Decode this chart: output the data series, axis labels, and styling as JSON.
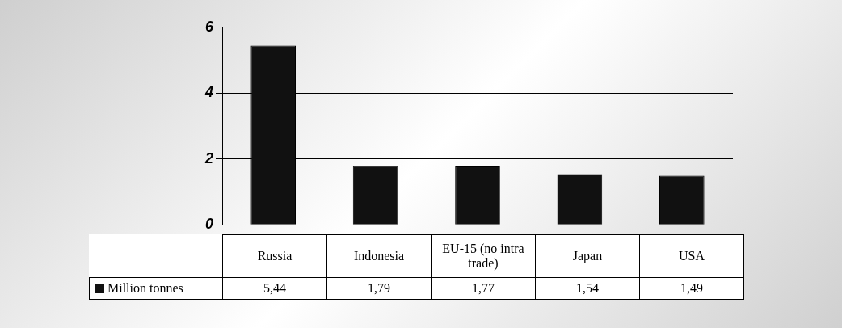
{
  "chart_data": {
    "type": "bar",
    "categories": [
      "Russia",
      "Indonesia",
      "EU-15 (no intra trade)",
      "Japan",
      "USA"
    ],
    "series": [
      {
        "name": "Million tonnes",
        "color": "#111111",
        "values": [
          5.44,
          1.79,
          1.77,
          1.54,
          1.49
        ],
        "value_labels": [
          "5,44",
          "1,79",
          "1,77",
          "1,54",
          "1,49"
        ]
      }
    ],
    "ylim": [
      0,
      6
    ],
    "yticks": [
      0,
      2,
      4,
      6
    ],
    "grid": "y",
    "legend": "bottom left"
  }
}
